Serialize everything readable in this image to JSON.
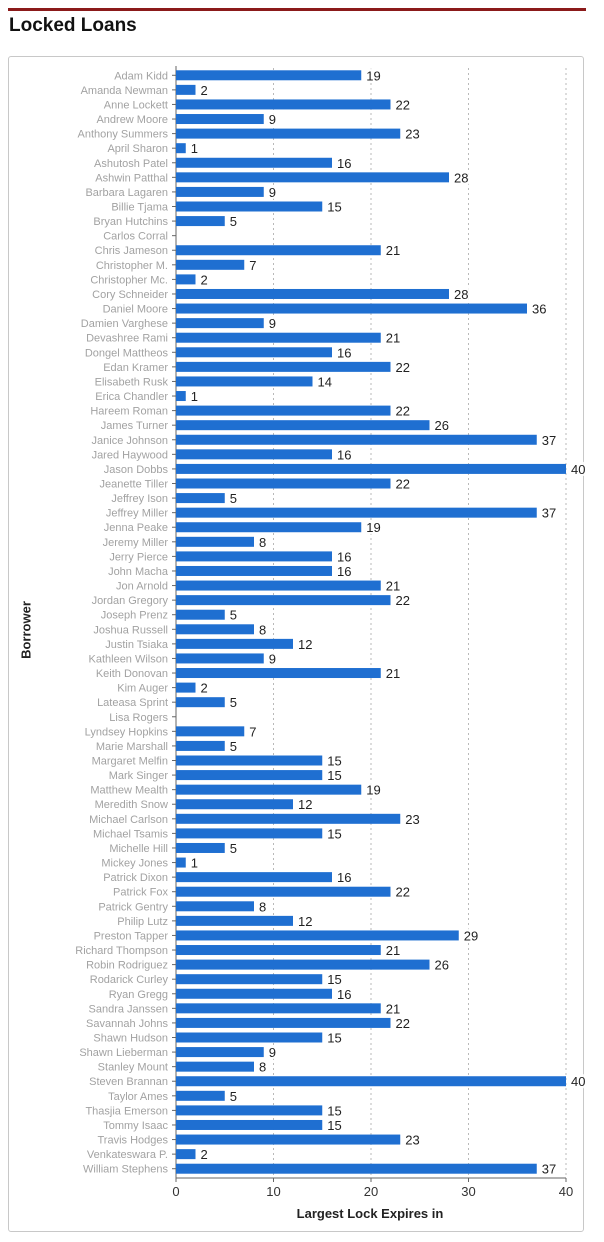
{
  "page": {
    "title": "Locked Loans"
  },
  "chart_data": {
    "type": "bar",
    "orientation": "horizontal",
    "title": "Locked Loans",
    "xlabel": "Largest Lock Expires in",
    "ylabel": "Borrower",
    "xlim": [
      0,
      40
    ],
    "xticks": [
      0,
      10,
      20,
      30,
      40
    ],
    "grid": true,
    "bar_color": "#1f6fd1",
    "categories": [
      "Adam Kidd",
      "Amanda Newman",
      "Anne Lockett",
      "Andrew Moore",
      "Anthony Summers",
      "April Sharon",
      "Ashutosh Patel",
      "Ashwin Patthal",
      "Barbara Lagaren",
      "Billie Tjama",
      "Bryan Hutchins",
      "Carlos Corral",
      "Chris Jameson",
      "Christopher M.",
      "Christopher Mc.",
      "Cory Schneider",
      "Daniel Moore",
      "Damien Varghese",
      "Devashree Rami",
      "Dongel Mattheos",
      "Edan Kramer",
      "Elisabeth Rusk",
      "Erica Chandler",
      "Hareem Roman",
      "James Turner",
      "Janice Johnson",
      "Jared Haywood",
      "Jason Dobbs",
      "Jeanette Tiller",
      "Jeffrey Ison",
      "Jeffrey Miller",
      "Jenna Peake",
      "Jeremy Miller",
      "Jerry Pierce",
      "John Macha",
      "Jon Arnold",
      "Jordan Gregory",
      "Joseph Prenz",
      "Joshua Russell",
      "Justin Tsiaka",
      "Kathleen Wilson",
      "Keith Donovan",
      "Kim Auger",
      "Lateasa Sprint",
      "Lisa Rogers",
      "Lyndsey Hopkins",
      "Marie Marshall",
      "Margaret Melfin",
      "Mark Singer",
      "Matthew Mealth",
      "Meredith Snow",
      "Michael Carlson",
      "Michael Tsamis",
      "Michelle Hill",
      "Mickey Jones",
      "Patrick Dixon",
      "Patrick Fox",
      "Patrick Gentry",
      "Philip Lutz",
      "Preston Tapper",
      "Richard Thompson",
      "Robin Rodriguez",
      "Rodarick Curley",
      "Ryan Gregg",
      "Sandra Janssen",
      "Savannah Johns",
      "Shawn Hudson",
      "Shawn Lieberman",
      "Stanley Mount",
      "Steven Brannan",
      "Taylor Ames",
      "Thasjia Emerson",
      "Tommy Isaac",
      "Travis Hodges",
      "Venkateswara P.",
      "William Stephens"
    ],
    "values": [
      19,
      2,
      22,
      9,
      23,
      1,
      16,
      28,
      9,
      15,
      5,
      null,
      21,
      7,
      2,
      28,
      36,
      9,
      21,
      16,
      22,
      14,
      1,
      22,
      26,
      37,
      16,
      40,
      22,
      5,
      37,
      19,
      8,
      16,
      16,
      21,
      22,
      5,
      8,
      12,
      9,
      21,
      2,
      5,
      null,
      7,
      5,
      15,
      15,
      19,
      12,
      23,
      15,
      5,
      1,
      16,
      22,
      8,
      12,
      29,
      21,
      26,
      15,
      16,
      21,
      22,
      15,
      9,
      8,
      40,
      5,
      15,
      15,
      23,
      2,
      37
    ]
  }
}
